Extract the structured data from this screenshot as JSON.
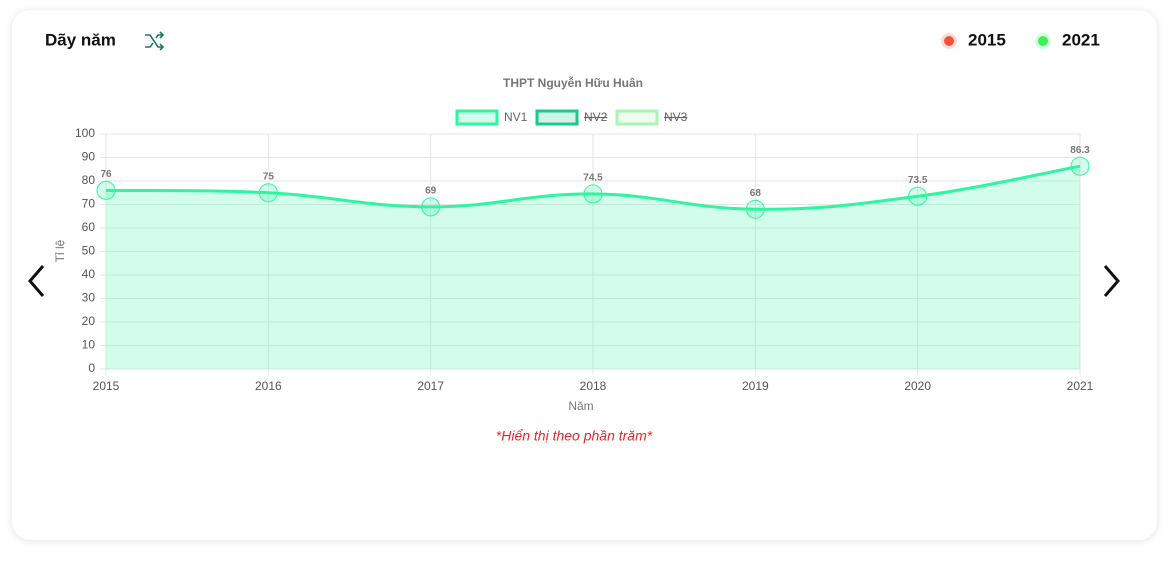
{
  "header": {
    "title": "Dãy năm",
    "legend": [
      {
        "label": "2015",
        "color": "#f4513c"
      },
      {
        "label": "2021",
        "color": "#3cf05a"
      }
    ]
  },
  "chart_data": {
    "type": "line",
    "title": "THPT Nguyễn Hữu Huân",
    "categories": [
      "2015",
      "2016",
      "2017",
      "2018",
      "2019",
      "2020",
      "2021"
    ],
    "series": [
      {
        "name": "NV1",
        "color": "#2ef5a0",
        "values": [
          76,
          75,
          69,
          74.5,
          68,
          73.5,
          86.3
        ]
      },
      {
        "name": "NV2",
        "color": "#1dc98a",
        "hidden": true
      },
      {
        "name": "NV3",
        "color": "#a9f5b4",
        "hidden": true
      }
    ],
    "xlabel": "Năm",
    "ylabel": "Tỉ lệ",
    "ylim": [
      0,
      100
    ],
    "yticks": [
      0,
      10,
      20,
      30,
      40,
      50,
      60,
      70,
      80,
      90,
      100
    ],
    "grid": true,
    "fill": true
  },
  "note": "*Hiển thị theo phần trăm*"
}
